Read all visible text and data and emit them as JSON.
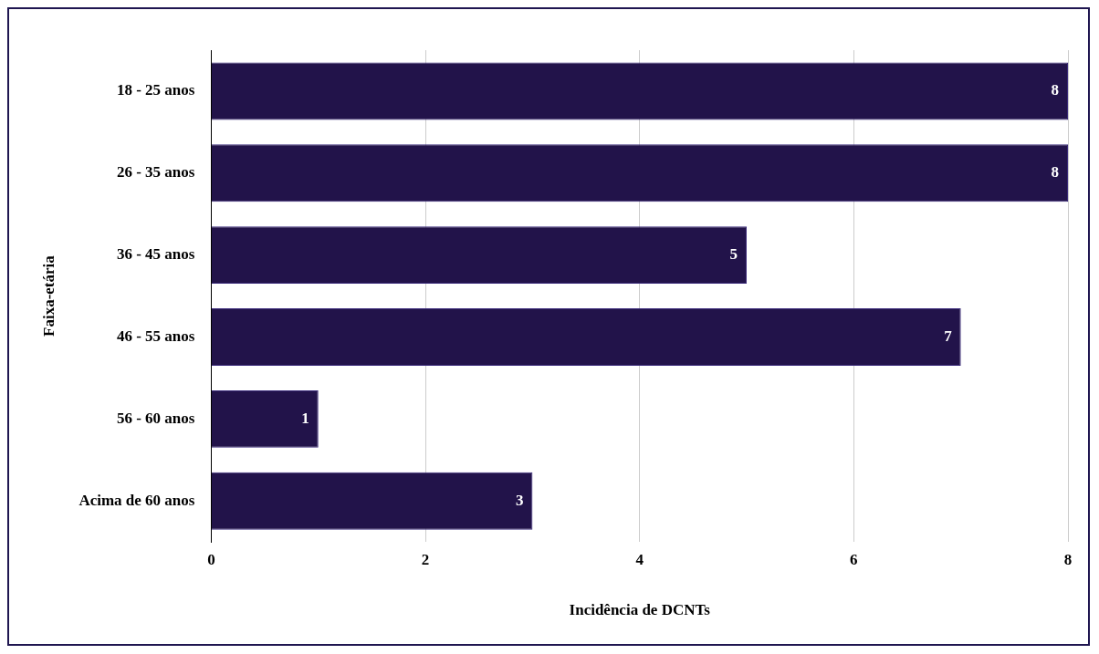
{
  "chart_data": {
    "type": "bar",
    "orientation": "horizontal",
    "categories": [
      "18 - 25 anos",
      "26 - 35 anos",
      "36 - 45 anos",
      "46 - 55 anos",
      "56 - 60 anos",
      "Acima de 60 anos"
    ],
    "values": [
      8,
      8,
      5,
      7,
      1,
      3
    ],
    "color": "#22134a",
    "xlim": [
      0,
      8
    ],
    "xticks": [
      0,
      2,
      4,
      6,
      8
    ],
    "grid": "x",
    "data_labels": true,
    "xlabel": "Incidência de DCNTs",
    "ylabel": "Faixa-etária"
  }
}
